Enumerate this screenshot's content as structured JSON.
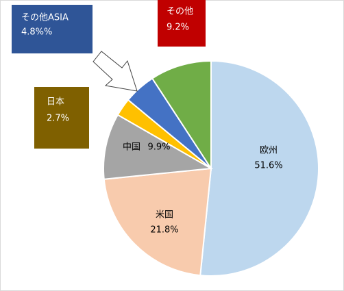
{
  "chart_data": {
    "type": "pie",
    "categories": [
      "欧州",
      "米国",
      "中国",
      "日本",
      "その他ASIA",
      "その他"
    ],
    "values": [
      51.6,
      21.8,
      9.9,
      2.7,
      4.8,
      9.2
    ],
    "value_labels": [
      "51.6%",
      "21.8%",
      "9.9%",
      "2.7%",
      "4.8%%",
      "9.2%"
    ],
    "colors": [
      "#bdd7ee",
      "#f8cbad",
      "#a5a5a5",
      "#ffc000",
      "#4472c4",
      "#70ad47"
    ]
  }
}
